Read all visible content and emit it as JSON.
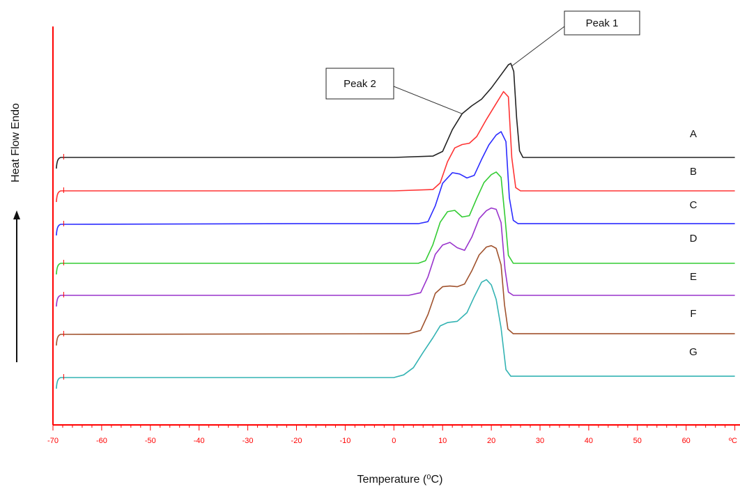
{
  "chart_data": {
    "type": "line",
    "title": "",
    "xlabel": "Temperature (⁰C)",
    "ylabel": "Heat Flow Endo",
    "xlim": [
      -70,
      70
    ],
    "x_tick_labels": [
      "-70",
      "-60",
      "-50",
      "-40",
      "-30",
      "-20",
      "-10",
      "0",
      "10",
      "20",
      "30",
      "40",
      "50",
      "60",
      "ºC"
    ],
    "grid": false,
    "legend": "inline labels at right",
    "axis_color": "#ff0000",
    "series": [
      {
        "name": "A",
        "color": "#222222",
        "baseline": 0,
        "points": [
          [
            -70,
            0
          ],
          [
            0,
            0
          ],
          [
            8,
            0.02
          ],
          [
            10,
            0.09
          ],
          [
            12,
            0.42
          ],
          [
            14,
            0.66
          ],
          [
            16,
            0.78
          ],
          [
            18,
            0.88
          ],
          [
            20,
            1.05
          ],
          [
            22,
            1.25
          ],
          [
            23.5,
            1.4
          ],
          [
            24,
            1.42
          ],
          [
            24.6,
            1.3
          ],
          [
            25.2,
            0.6
          ],
          [
            25.8,
            0.1
          ],
          [
            26.5,
            0
          ],
          [
            70,
            0
          ]
        ]
      },
      {
        "name": "B",
        "color": "#ff3333",
        "baseline": 0,
        "points": [
          [
            -70,
            0
          ],
          [
            0,
            0
          ],
          [
            8,
            0.02
          ],
          [
            9.5,
            0.12
          ],
          [
            11,
            0.44
          ],
          [
            12.5,
            0.65
          ],
          [
            14,
            0.7
          ],
          [
            15.5,
            0.72
          ],
          [
            17,
            0.82
          ],
          [
            19,
            1.08
          ],
          [
            21,
            1.32
          ],
          [
            22.5,
            1.5
          ],
          [
            23.5,
            1.42
          ],
          [
            24.2,
            0.5
          ],
          [
            25,
            0.05
          ],
          [
            26,
            0
          ],
          [
            70,
            0
          ]
        ]
      },
      {
        "name": "C",
        "color": "#2b2bff",
        "baseline": 0,
        "points": [
          [
            -70,
            0
          ],
          [
            -20,
            0.01
          ],
          [
            5,
            0.01
          ],
          [
            7,
            0.04
          ],
          [
            8.5,
            0.28
          ],
          [
            10,
            0.62
          ],
          [
            12,
            0.78
          ],
          [
            13.5,
            0.76
          ],
          [
            15,
            0.7
          ],
          [
            16.5,
            0.74
          ],
          [
            18,
            0.98
          ],
          [
            19.5,
            1.2
          ],
          [
            21,
            1.35
          ],
          [
            22,
            1.4
          ],
          [
            23,
            1.25
          ],
          [
            23.7,
            0.4
          ],
          [
            24.5,
            0.06
          ],
          [
            25.5,
            0.01
          ],
          [
            70,
            0.01
          ]
        ]
      },
      {
        "name": "D",
        "color": "#33cc33",
        "baseline": 0,
        "points": [
          [
            -70,
            0
          ],
          [
            5,
            0
          ],
          [
            6.5,
            0.04
          ],
          [
            8,
            0.28
          ],
          [
            9.5,
            0.62
          ],
          [
            11,
            0.78
          ],
          [
            12.5,
            0.8
          ],
          [
            14,
            0.7
          ],
          [
            15.5,
            0.72
          ],
          [
            17,
            0.98
          ],
          [
            18.5,
            1.22
          ],
          [
            20,
            1.34
          ],
          [
            21,
            1.38
          ],
          [
            22,
            1.3
          ],
          [
            22.8,
            0.7
          ],
          [
            23.5,
            0.12
          ],
          [
            24.5,
            0
          ],
          [
            70,
            0
          ]
        ]
      },
      {
        "name": "E",
        "color": "#9933cc",
        "baseline": 0,
        "points": [
          [
            -70,
            0
          ],
          [
            3,
            0
          ],
          [
            5.5,
            0.04
          ],
          [
            7,
            0.28
          ],
          [
            8.5,
            0.62
          ],
          [
            10,
            0.76
          ],
          [
            11.5,
            0.8
          ],
          [
            13,
            0.72
          ],
          [
            14.5,
            0.68
          ],
          [
            16,
            0.88
          ],
          [
            17.5,
            1.16
          ],
          [
            19,
            1.28
          ],
          [
            20,
            1.32
          ],
          [
            21,
            1.3
          ],
          [
            22,
            1.1
          ],
          [
            22.8,
            0.4
          ],
          [
            23.5,
            0.05
          ],
          [
            24.5,
            0
          ],
          [
            70,
            0
          ]
        ]
      },
      {
        "name": "F",
        "color": "#a0522d",
        "baseline": 0,
        "points": [
          [
            -70,
            0
          ],
          [
            3,
            0.01
          ],
          [
            5.5,
            0.06
          ],
          [
            7,
            0.3
          ],
          [
            8.5,
            0.62
          ],
          [
            10,
            0.72
          ],
          [
            11.5,
            0.73
          ],
          [
            13,
            0.72
          ],
          [
            14.5,
            0.76
          ],
          [
            16,
            0.96
          ],
          [
            17.5,
            1.2
          ],
          [
            19,
            1.32
          ],
          [
            20,
            1.34
          ],
          [
            21,
            1.3
          ],
          [
            22,
            1.05
          ],
          [
            22.7,
            0.45
          ],
          [
            23.4,
            0.08
          ],
          [
            24.5,
            0.01
          ],
          [
            70,
            0.01
          ]
        ]
      },
      {
        "name": "G",
        "color": "#33b3b3",
        "baseline": 0,
        "points": [
          [
            -70,
            0
          ],
          [
            0,
            0
          ],
          [
            2,
            0.04
          ],
          [
            4,
            0.15
          ],
          [
            6,
            0.38
          ],
          [
            8,
            0.6
          ],
          [
            9.5,
            0.78
          ],
          [
            11,
            0.83
          ],
          [
            13,
            0.85
          ],
          [
            15,
            0.98
          ],
          [
            16.5,
            1.22
          ],
          [
            18,
            1.44
          ],
          [
            19,
            1.48
          ],
          [
            20,
            1.4
          ],
          [
            21,
            1.18
          ],
          [
            22,
            0.75
          ],
          [
            23,
            0.12
          ],
          [
            24,
            0.02
          ],
          [
            70,
            0.02
          ]
        ]
      }
    ],
    "annotations": [
      {
        "text": "Peak 1",
        "target": "A",
        "x": 24.2
      },
      {
        "text": "Peak 2",
        "target": "A",
        "x": 14
      }
    ]
  }
}
